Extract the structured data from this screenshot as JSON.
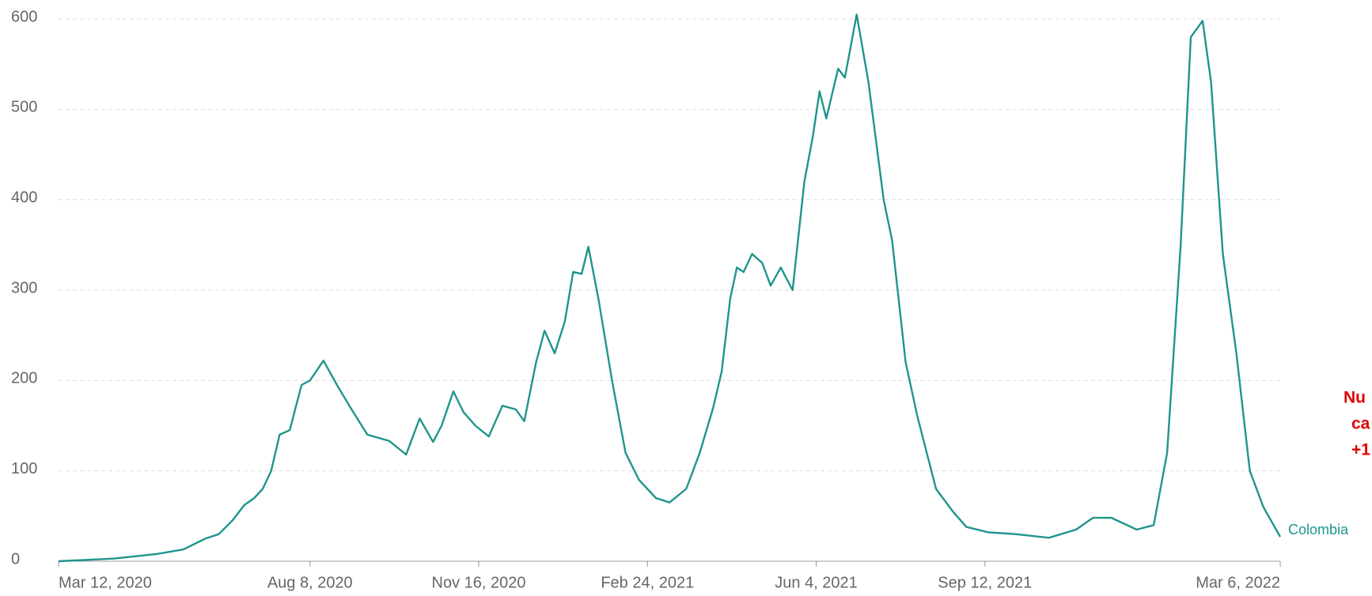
{
  "chart_data": {
    "type": "line",
    "x": [
      "2020-03-12",
      "2020-04-14",
      "2020-05-09",
      "2020-05-25",
      "2020-06-07",
      "2020-06-15",
      "2020-06-23",
      "2020-06-30",
      "2020-07-06",
      "2020-07-11",
      "2020-07-16",
      "2020-07-21",
      "2020-07-27",
      "2020-08-03",
      "2020-08-08",
      "2020-08-16",
      "2020-08-24",
      "2020-09-01",
      "2020-09-11",
      "2020-09-24",
      "2020-10-04",
      "2020-10-12",
      "2020-10-20",
      "2020-10-25",
      "2020-11-01",
      "2020-11-07",
      "2020-11-14",
      "2020-11-22",
      "2020-11-30",
      "2020-12-08",
      "2020-12-13",
      "2020-12-20",
      "2020-12-25",
      "2020-12-31",
      "2021-01-06",
      "2021-01-11",
      "2021-01-16",
      "2021-01-20",
      "2021-01-26",
      "2021-02-03",
      "2021-02-11",
      "2021-02-19",
      "2021-03-01",
      "2021-03-09",
      "2021-03-19",
      "2021-03-27",
      "2021-04-04",
      "2021-04-09",
      "2021-04-14",
      "2021-04-18",
      "2021-04-22",
      "2021-04-27",
      "2021-05-03",
      "2021-05-08",
      "2021-05-14",
      "2021-05-21",
      "2021-05-28",
      "2021-06-02",
      "2021-06-06",
      "2021-06-10",
      "2021-06-17",
      "2021-06-21",
      "2021-06-28",
      "2021-07-05",
      "2021-07-14",
      "2021-07-19",
      "2021-07-27",
      "2021-08-03",
      "2021-08-14",
      "2021-08-24",
      "2021-09-01",
      "2021-09-14",
      "2021-09-30",
      "2021-10-20",
      "2021-11-05",
      "2021-11-15",
      "2021-11-26",
      "2021-12-11",
      "2021-12-21",
      "2021-12-29",
      "2022-01-06",
      "2022-01-12",
      "2022-01-19",
      "2022-01-24",
      "2022-01-31",
      "2022-02-08",
      "2022-02-16",
      "2022-02-24",
      "2022-03-06"
    ],
    "series": [
      {
        "name": "Colombia",
        "color": "#20958c",
        "values": [
          0,
          3,
          8,
          13,
          25,
          30,
          45,
          62,
          70,
          80,
          100,
          140,
          145,
          195,
          200,
          222,
          195,
          170,
          140,
          133,
          118,
          158,
          132,
          150,
          188,
          165,
          150,
          138,
          172,
          168,
          155,
          220,
          255,
          230,
          265,
          320,
          318,
          348,
          290,
          200,
          120,
          90,
          70,
          65,
          80,
          120,
          170,
          210,
          290,
          325,
          320,
          340,
          330,
          305,
          325,
          300,
          420,
          470,
          520,
          490,
          545,
          535,
          605,
          530,
          400,
          355,
          220,
          160,
          80,
          55,
          38,
          32,
          30,
          26,
          35,
          48,
          48,
          35,
          40,
          120,
          350,
          580,
          598,
          530,
          340,
          230,
          100,
          60,
          27
        ]
      }
    ],
    "xlim": [
      "2020-03-12",
      "2022-03-06"
    ],
    "xticks": [
      {
        "value": "2020-03-12",
        "label": "Mar 12, 2020"
      },
      {
        "value": "2020-08-08",
        "label": "Aug 8, 2020"
      },
      {
        "value": "2020-11-16",
        "label": "Nov 16, 2020"
      },
      {
        "value": "2021-02-24",
        "label": "Feb 24, 2021"
      },
      {
        "value": "2021-06-04",
        "label": "Jun 4, 2021"
      },
      {
        "value": "2021-09-12",
        "label": "Sep 12, 2021"
      },
      {
        "value": "2022-03-06",
        "label": "Mar 6, 2022"
      }
    ],
    "ylim": [
      0,
      600
    ],
    "yticks": [
      0,
      100,
      200,
      300,
      400,
      500,
      600
    ],
    "grid": true,
    "annotation": [
      "Nu",
      "ca",
      "+1"
    ]
  }
}
